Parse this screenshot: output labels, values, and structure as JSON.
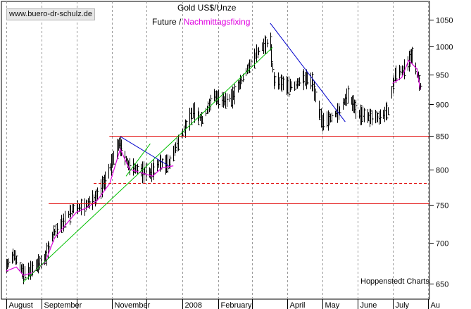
{
  "watermark": "www.buero-dr-schulz.de",
  "title": "Gold US$/Unze",
  "legend": {
    "future_label": "Future /",
    "fixing_label": "Nachmittagsfixing"
  },
  "source": "Hoppenstedt Charts",
  "colors": {
    "future": "#000000",
    "fixing": "#e000e0",
    "support": "#e00000",
    "uptrend": "#00c000",
    "downtrend": "#0000cc",
    "grid": "#9a9a9a"
  },
  "chart_data": {
    "type": "line",
    "title": "Gold US$/Unze",
    "y_scale": "log",
    "ylim": [
      632,
      1085
    ],
    "y_ticks": [
      650,
      700,
      750,
      800,
      850,
      900,
      950,
      1000,
      1050
    ],
    "x_tick_labels": [
      "August",
      "September",
      "November",
      "2008",
      "February",
      "April",
      "May",
      "June",
      "July",
      "Au"
    ],
    "grid": "vertical dashed",
    "series": [
      {
        "name": "Future",
        "style": "daily OHLC bars",
        "x": [
          "2007-08-01",
          "2007-08-08",
          "2007-08-16",
          "2007-08-24",
          "2007-09-03",
          "2007-09-11",
          "2007-09-20",
          "2007-09-28",
          "2007-10-08",
          "2007-10-17",
          "2007-10-26",
          "2007-11-07",
          "2007-11-15",
          "2007-11-23",
          "2007-12-04",
          "2007-12-12",
          "2007-12-20",
          "2008-01-02",
          "2008-01-10",
          "2008-01-18",
          "2008-01-28",
          "2008-02-06",
          "2008-02-14",
          "2008-02-22",
          "2008-03-03",
          "2008-03-10",
          "2008-03-17",
          "2008-03-20",
          "2008-03-28",
          "2008-04-07",
          "2008-04-14",
          "2008-04-22",
          "2008-05-01",
          "2008-05-09",
          "2008-05-16",
          "2008-05-23",
          "2008-06-02",
          "2008-06-11",
          "2008-06-20",
          "2008-06-27",
          "2008-07-03",
          "2008-07-11",
          "2008-07-18",
          "2008-07-25"
        ],
        "y": [
          672,
          685,
          662,
          668,
          680,
          712,
          728,
          745,
          748,
          760,
          785,
          840,
          805,
          800,
          795,
          810,
          808,
          860,
          890,
          875,
          915,
          905,
          915,
          945,
          980,
          1000,
          1010,
          940,
          935,
          930,
          945,
          940,
          870,
          880,
          890,
          915,
          885,
          880,
          880,
          890,
          950,
          960,
          985,
          930
        ]
      },
      {
        "name": "Nachmittagsfixing",
        "style": "line",
        "x": [
          "2007-08-01",
          "2007-08-10",
          "2007-08-16",
          "2007-08-24",
          "2007-09-04",
          "2007-09-12",
          "2007-09-21",
          "2007-10-01",
          "2007-10-10",
          "2007-10-19",
          "2007-10-30",
          "2007-11-08",
          "2007-11-16",
          "2007-11-26",
          "2007-12-06",
          "2007-12-14",
          "2007-12-24",
          "2008-07-01",
          "2008-07-09",
          "2008-07-15",
          "2008-07-22",
          "2008-07-25"
        ],
        "y": [
          665,
          670,
          660,
          663,
          676,
          706,
          722,
          740,
          746,
          756,
          780,
          830,
          800,
          795,
          790,
          802,
          805,
          935,
          945,
          975,
          960,
          925
        ]
      }
    ],
    "annotations": [
      {
        "type": "hline",
        "y": 850,
        "style": "solid",
        "color": "#e00000"
      },
      {
        "type": "hline",
        "y": 780,
        "style": "dashed",
        "color": "#e00000"
      },
      {
        "type": "hline",
        "y": 752,
        "style": "solid",
        "color": "#e00000"
      },
      {
        "type": "trendline",
        "from": [
          "2007-08-16",
          652
        ],
        "to": [
          "2008-03-19",
          998
        ],
        "color": "#00c000"
      },
      {
        "type": "trendline",
        "from": [
          "2007-11-08",
          849
        ],
        "to": [
          "2007-12-20",
          805
        ],
        "color": "#0000cc"
      },
      {
        "type": "trendline",
        "from": [
          "2007-11-13",
          790
        ],
        "to": [
          "2007-12-04",
          838
        ],
        "color": "#00c000"
      },
      {
        "type": "trendline",
        "from": [
          "2008-03-17",
          1043
        ],
        "to": [
          "2008-05-21",
          872
        ],
        "color": "#0000cc"
      }
    ]
  }
}
